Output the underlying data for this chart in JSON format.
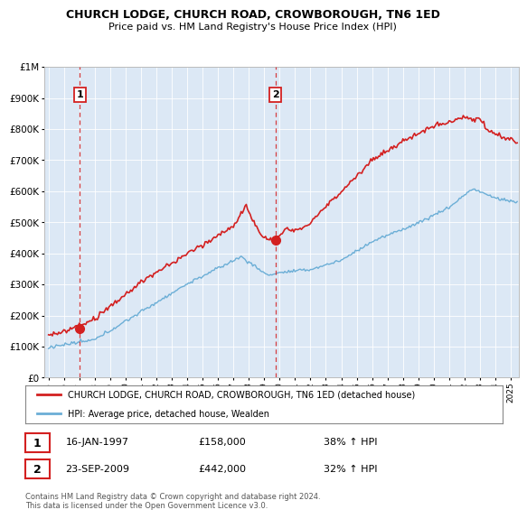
{
  "title": "CHURCH LODGE, CHURCH ROAD, CROWBOROUGH, TN6 1ED",
  "subtitle": "Price paid vs. HM Land Registry's House Price Index (HPI)",
  "red_label": "CHURCH LODGE, CHURCH ROAD, CROWBOROUGH, TN6 1ED (detached house)",
  "blue_label": "HPI: Average price, detached house, Wealden",
  "annotation1_date": "16-JAN-1997",
  "annotation1_price": "£158,000",
  "annotation1_hpi": "38% ↑ HPI",
  "annotation2_date": "23-SEP-2009",
  "annotation2_price": "£442,000",
  "annotation2_hpi": "32% ↑ HPI",
  "footer": "Contains HM Land Registry data © Crown copyright and database right 2024.\nThis data is licensed under the Open Government Licence v3.0.",
  "plot_bg": "#dce8f5",
  "ylim": [
    0,
    1000000
  ],
  "xlim_start": 1994.7,
  "xlim_end": 2025.5,
  "sale1_t": 1997.04,
  "sale1_v": 158000,
  "sale2_t": 2009.73,
  "sale2_v": 442000
}
